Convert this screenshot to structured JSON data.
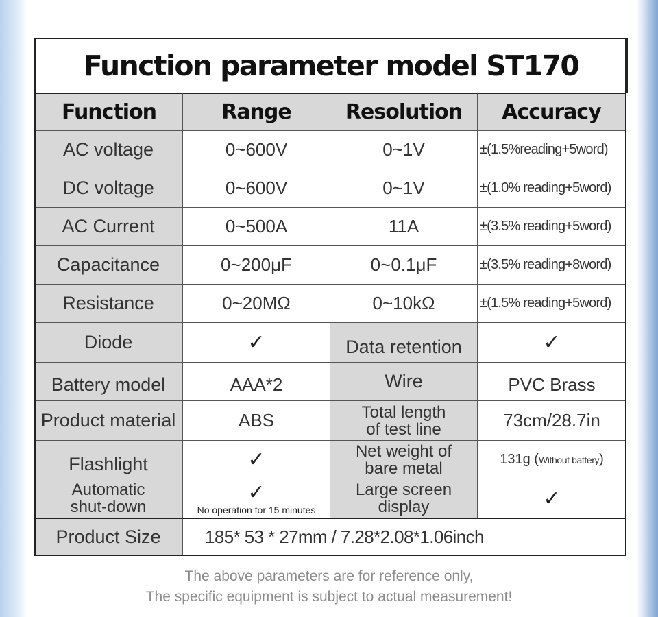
{
  "title": "Function parameter model ST170",
  "headers": [
    "Function",
    "Range",
    "Resolution",
    "Accuracy"
  ],
  "spec_rows": [
    {
      "function": "AC voltage",
      "range": "0~600V",
      "resolution": "0~1V",
      "accuracy": "±(1.5%reading+5word)"
    },
    {
      "function": "DC voltage",
      "range": "0~600V",
      "resolution": "0~1V",
      "accuracy": "±(1.0% reading+5word)"
    },
    {
      "function": "AC Current",
      "range": "0~500A",
      "resolution": "11A",
      "accuracy": "±(3.5% reading+5word)"
    },
    {
      "function": "Capacitance",
      "range": "0~200μF",
      "resolution": "0~0.1μF",
      "accuracy": "±(3.5% reading+8word)"
    },
    {
      "function": "Resistance",
      "range": "0~20MΩ",
      "resolution": "0~10kΩ",
      "accuracy": "±(1.5% reading+5word)"
    }
  ],
  "feature_rows": {
    "diode": {
      "label": "Diode",
      "value": "✓",
      "label2": "Data retention",
      "value2": "✓"
    },
    "battery": {
      "label": "Battery model",
      "value": "AAA*2",
      "label2": "Wire",
      "value2": "PVC Brass"
    },
    "material": {
      "label": "Product material",
      "value": "ABS",
      "label2_line1": "Total length",
      "label2_line2": "of test line",
      "value2": "73cm/28.7in"
    },
    "flashlight": {
      "label": "Flashlight",
      "value": "✓",
      "label2_line1": "Net weight of",
      "label2_line2": "bare metal",
      "value2_main": "131g (",
      "value2_small": "Without battery",
      "value2_end": ")"
    },
    "shutdown": {
      "label_line1": "Automatic",
      "label_line2": "shut-down",
      "value": "✓",
      "value_note": "No operation for 15 minutes",
      "label2_line1": "Large screen",
      "label2_line2": "display",
      "value2": "✓"
    }
  },
  "product_size": {
    "label": "Product Size",
    "value": "185* 53 * 27mm / 7.28*2.08*1.06inch"
  },
  "footnote": {
    "line1": "The above parameters are for reference only,",
    "line2": "The specific equipment is subject to actual measurement!"
  }
}
